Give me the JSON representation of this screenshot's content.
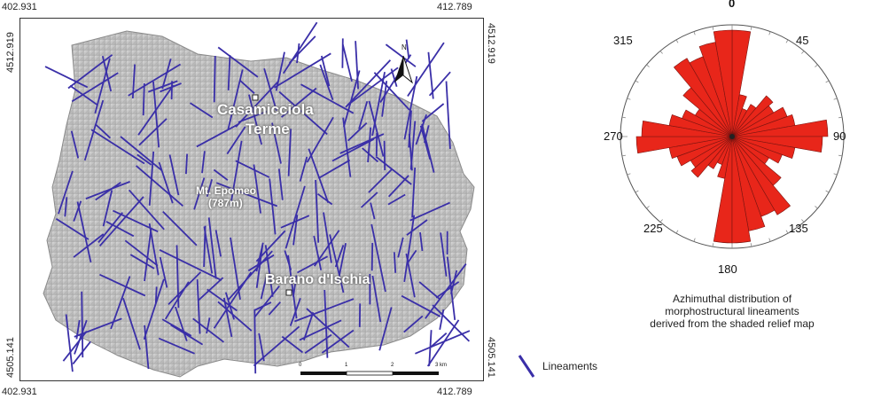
{
  "map": {
    "corner_coords": {
      "top_left_x": "402.931",
      "top_right_x": "412.789",
      "bottom_left_x": "402.931",
      "bottom_right_x": "412.789",
      "left_top_y": "4512.919",
      "right_top_y": "4512.919",
      "left_bottom_y": "4505.141",
      "right_bottom_y": "4505.141"
    },
    "places": {
      "casamicciola": "Casamicciola",
      "terme": "Terme",
      "epomeo_1": "Mt. Epomeo",
      "epomeo_2": "(787m)",
      "barano": "Barano d'Ischia"
    },
    "north_label": "N",
    "scale_bar": {
      "ticks": [
        "0",
        "1",
        "2",
        "3 km"
      ]
    },
    "colors": {
      "lineament": "#3a2fa8",
      "relief": "#c9c9c9",
      "frame": "#333333"
    }
  },
  "legend": {
    "label": "Lineaments",
    "color": "#3a2fa8"
  },
  "rose": {
    "labels": {
      "n0": "0",
      "n45": "45",
      "n90": "90",
      "n135": "135",
      "n180": "180",
      "n225": "225",
      "n270": "270",
      "n315": "315"
    },
    "caption": {
      "line1": "Azhimuthal distribution of",
      "line2": "morphostructural lineaments",
      "line3": "derived from the shaded relief map"
    },
    "bin_width_deg": 10,
    "bins_0_to_170": [
      1.0,
      0.4,
      0.28,
      0.35,
      0.5,
      0.45,
      0.55,
      0.6,
      0.9,
      0.85,
      0.6,
      0.5,
      0.4,
      0.6,
      0.85,
      0.8,
      0.9,
      1.0
    ],
    "colors": {
      "petal": "#e8261a",
      "petal_stroke": "#7a1410",
      "grid": "#888888"
    }
  }
}
